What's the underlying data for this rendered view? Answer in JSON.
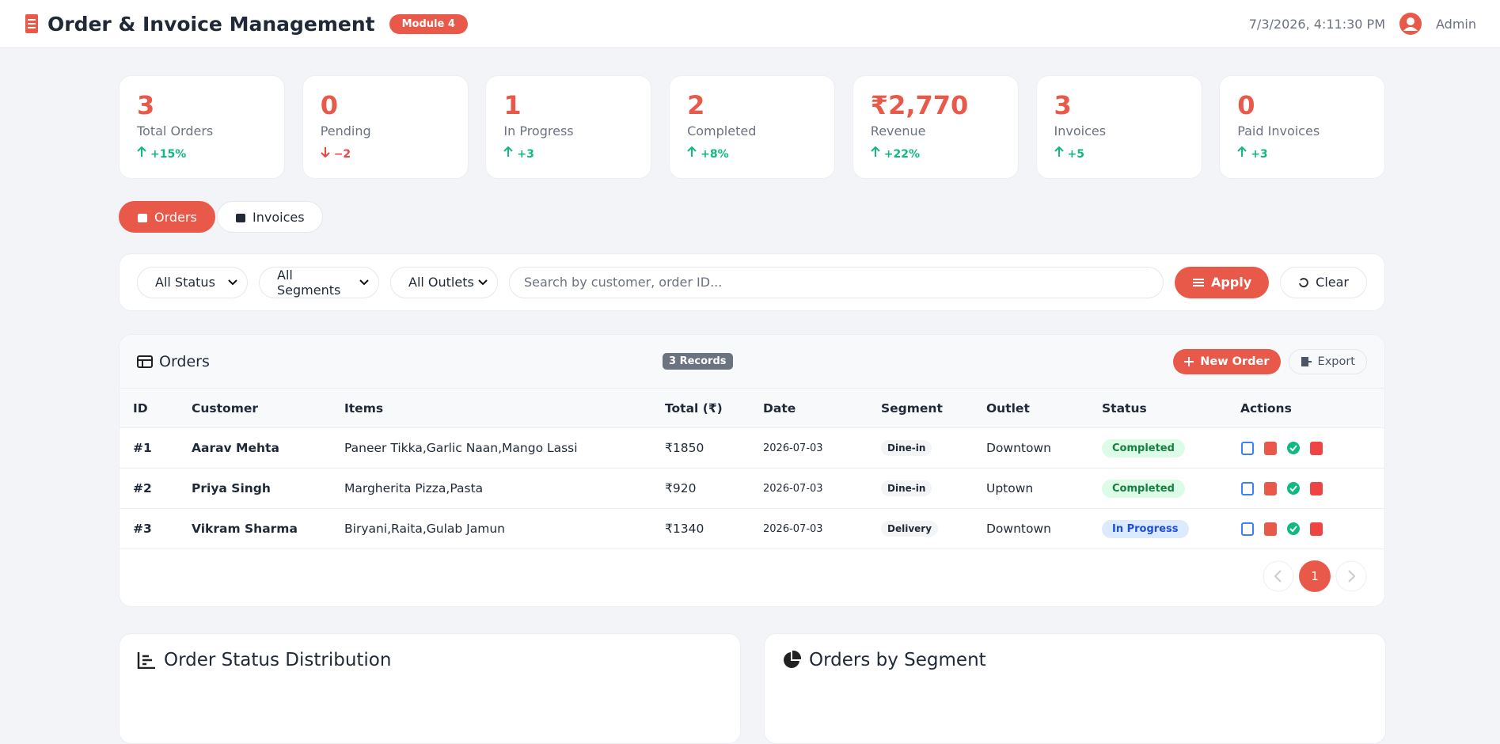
{
  "header": {
    "title": "Order & Invoice Management",
    "badge": "Module 4",
    "datetime": "7/3/2026, 4:11:30 PM",
    "user": "Admin"
  },
  "stats": [
    {
      "value": "3",
      "label": "Total Orders",
      "change": "+15%",
      "trend": "up"
    },
    {
      "value": "0",
      "label": "Pending",
      "change": "−2",
      "trend": "down"
    },
    {
      "value": "1",
      "label": "In Progress",
      "change": "+3",
      "trend": "up"
    },
    {
      "value": "2",
      "label": "Completed",
      "change": "+8%",
      "trend": "up"
    },
    {
      "value": "₹2,770",
      "label": "Revenue",
      "change": "+22%",
      "trend": "up"
    },
    {
      "value": "3",
      "label": "Invoices",
      "change": "+5",
      "trend": "up"
    },
    {
      "value": "0",
      "label": "Paid Invoices",
      "change": "+3",
      "trend": "up"
    }
  ],
  "tabs": [
    "Orders",
    "Invoices"
  ],
  "filters": {
    "selects": [
      "All Status",
      "All Segments",
      "All Outlets"
    ],
    "search_placeholder": "Search by customer, order ID...",
    "apply": "Apply",
    "clear": "Clear"
  },
  "orders": {
    "title": "Orders",
    "records": "3 Records",
    "new_order": "New Order",
    "export": "Export",
    "columns": [
      "ID",
      "Customer",
      "Items",
      "Total (₹)",
      "Date",
      "Segment",
      "Outlet",
      "Status",
      "Actions"
    ],
    "rows": [
      [
        "#1",
        "Aarav Mehta",
        "Paneer Tikka,Garlic Naan,Mango Lassi",
        "₹1850",
        "2026-07-03",
        "Dine-in",
        "Downtown",
        "Completed"
      ],
      [
        "#2",
        "Priya Singh",
        "Margherita Pizza,Pasta",
        "₹920",
        "2026-07-03",
        "Dine-in",
        "Uptown",
        "Completed"
      ],
      [
        "#3",
        "Vikram Sharma",
        "Biryani,Raita,Gulab Jamun",
        "₹1340",
        "2026-07-03",
        "Delivery",
        "Downtown",
        "In Progress"
      ]
    ]
  },
  "pagination": {
    "current": "1"
  },
  "charts": [
    "Order Status Distribution",
    "Orders by Segment"
  ]
}
